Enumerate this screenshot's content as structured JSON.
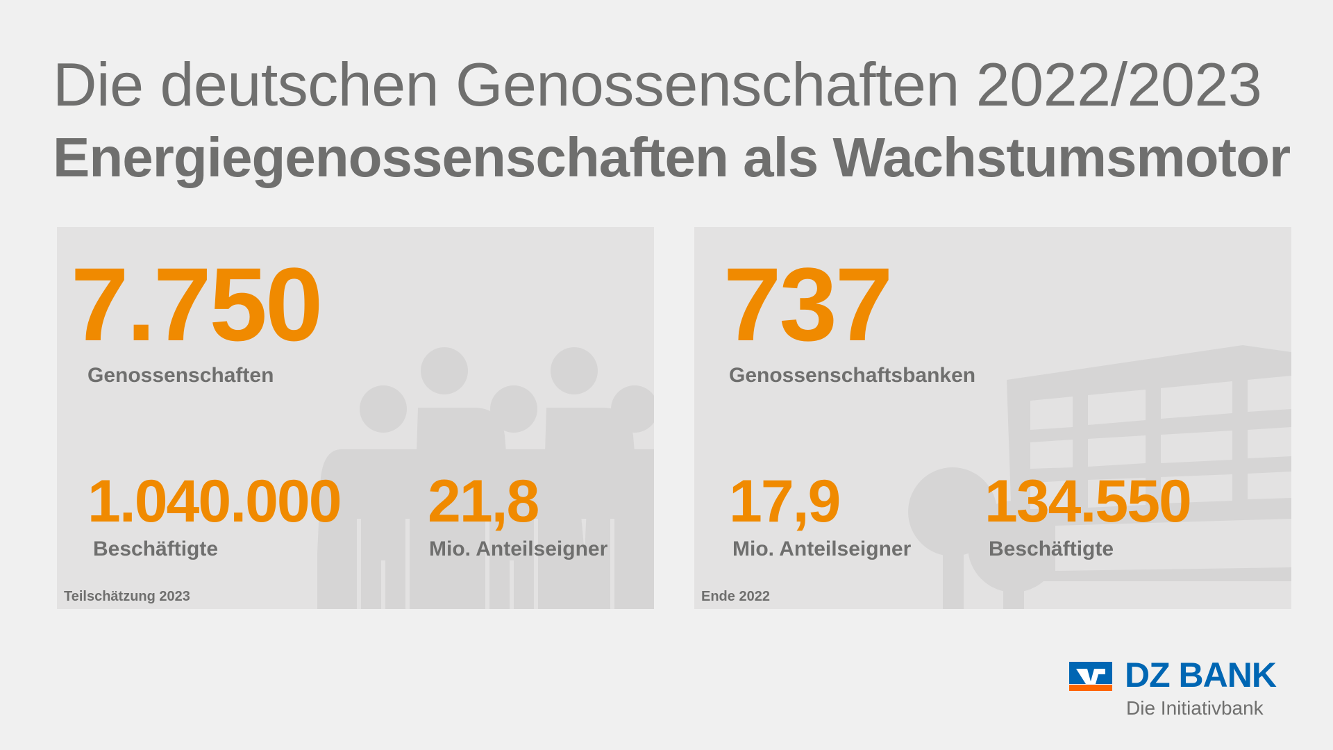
{
  "title": {
    "line1": "Die deutschen Genossenschaften 2022/2023",
    "line2": "Energiegenossenschaften als Wachstumsmotor"
  },
  "panels": [
    {
      "main_value": "7.750",
      "main_label": "Genossenschaften",
      "stat1_value": "1.040.000",
      "stat1_label": "Beschäftigte",
      "stat2_value": "21,8",
      "stat2_label": "Mio. Anteilseigner",
      "footnote": "Teilschätzung 2023",
      "background_icon": "people-group-icon"
    },
    {
      "main_value": "737",
      "main_label": "Genossenschaftsbanken",
      "stat1_value": "17,9",
      "stat1_label": "Mio. Anteilseigner",
      "stat2_value": "134.550",
      "stat2_label": "Beschäftigte",
      "footnote": "Ende 2022",
      "background_icon": "bank-building-icon"
    }
  ],
  "logo": {
    "name": "DZ BANK",
    "tagline": "Die Initiativbank"
  },
  "colors": {
    "accent": "#f08a00",
    "text": "#6f6f6e",
    "brand_blue": "#0066b3",
    "brand_orange": "#ff6600"
  }
}
